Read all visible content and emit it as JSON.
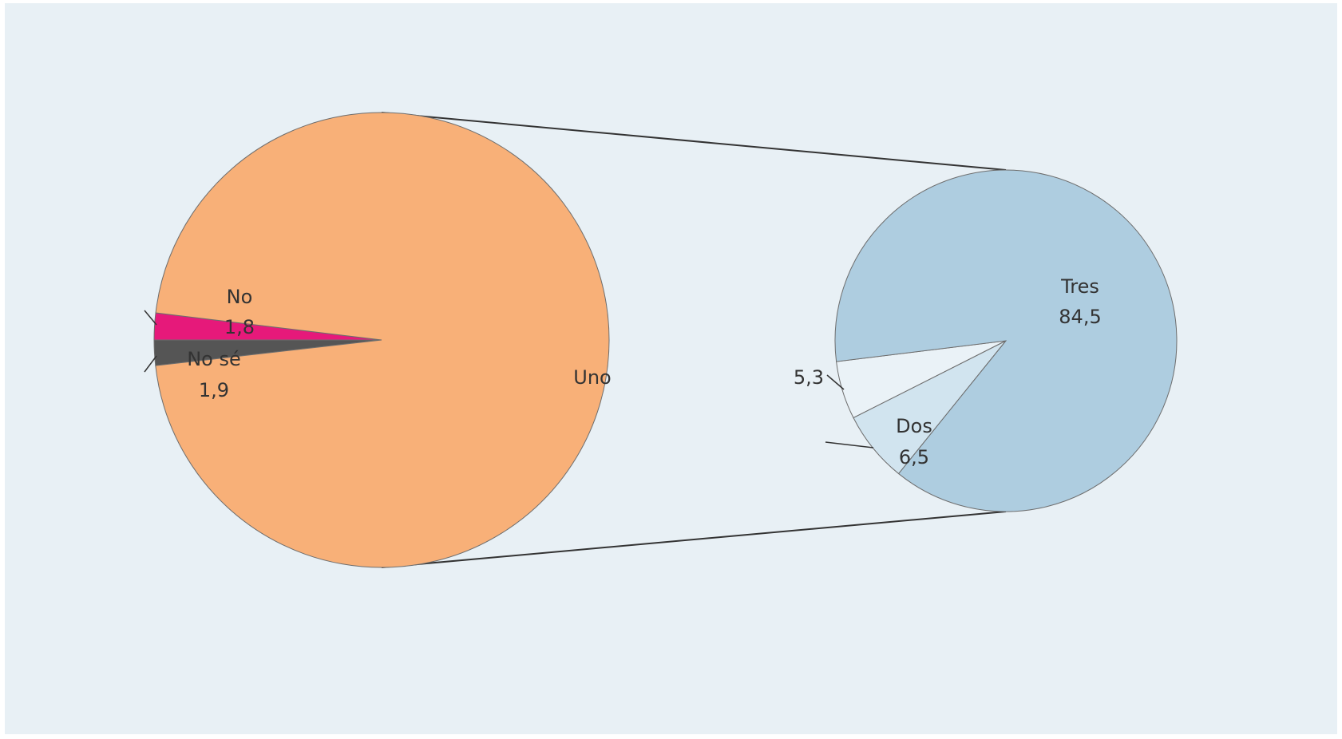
{
  "chart_data": [
    {
      "type": "pie",
      "title": "",
      "slices": [
        {
          "label": "Uno",
          "value": 96.3,
          "color": "#f8b078",
          "value_shown": false
        },
        {
          "label": "No",
          "value": 1.8,
          "color": "#555555",
          "value_shown": true
        },
        {
          "label": "No sé",
          "value": 1.9,
          "color": "#e6197a",
          "value_shown": true
        }
      ],
      "value_labels": {
        "No": "1,8",
        "No sé": "1,9"
      },
      "legend": "none"
    },
    {
      "type": "pie",
      "title": "",
      "breakdown_of": "Uno",
      "slices": [
        {
          "label": "Tres",
          "value": 84.5,
          "color": "#aecde0"
        },
        {
          "label": "Dos",
          "value": 6.5,
          "color": "#d1e4ef"
        },
        {
          "label": "",
          "value": 5.3,
          "color": "#eaf2f7"
        }
      ],
      "value_labels": {
        "Tres": "84,5",
        "Dos": "6,5",
        "": "5,3"
      },
      "legend": "none"
    }
  ]
}
